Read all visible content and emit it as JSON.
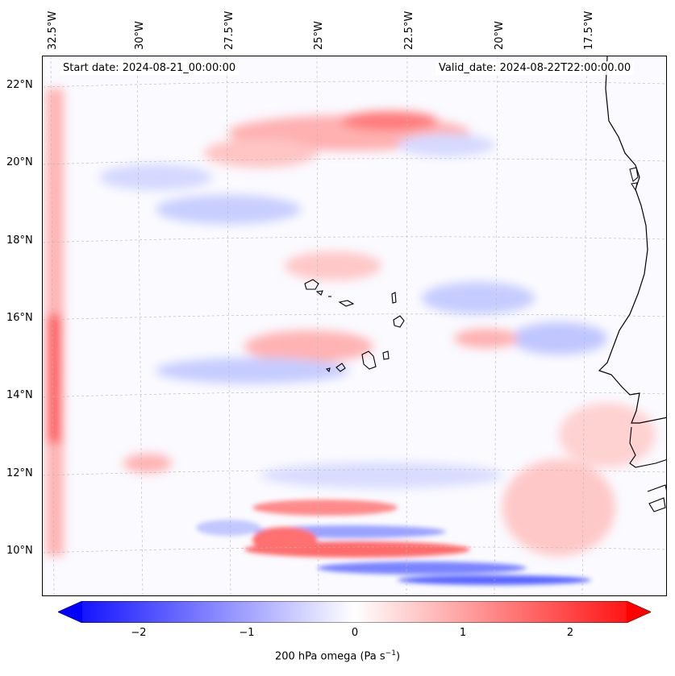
{
  "header": {
    "start_date": "Start date: 2024-08-21_00:00:00",
    "valid_date": "Valid_date: 2024-08-22T22:00:00.00"
  },
  "map": {
    "longitude_labels": [
      "32.5°W",
      "30°W",
      "27.5°W",
      "25°W",
      "22.5°W",
      "20°W",
      "17.5°W"
    ],
    "latitude_labels": [
      "22°N",
      "20°N",
      "18°N",
      "16°N",
      "14°N",
      "12°N",
      "10°N"
    ],
    "field": "200 hPa omega",
    "coastline_color": "#000000",
    "positive_color": "#ff0000",
    "negative_color": "#0000ff",
    "neutral_color": "#ffffff"
  },
  "colorbar": {
    "ticks": [
      "−2",
      "−1",
      "0",
      "1",
      "2"
    ],
    "label": "200 hPa omega (Pa s",
    "label_sup": "−1",
    "label_end": ")",
    "range": [
      -2.6,
      2.6
    ],
    "extend": "both"
  }
}
